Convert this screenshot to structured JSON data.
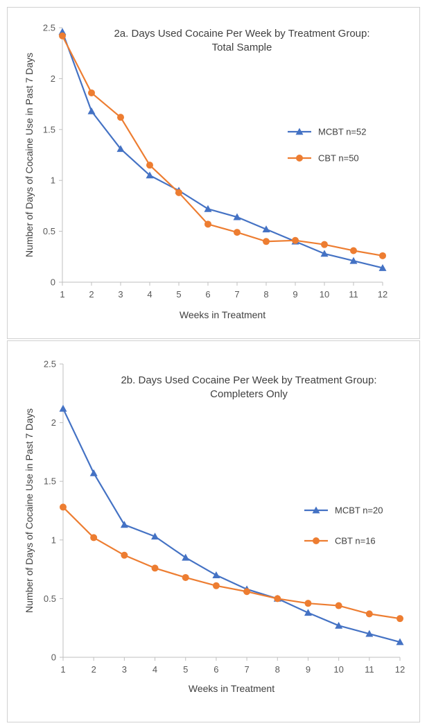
{
  "colors": {
    "mcbt": "#4472C4",
    "cbt": "#ED7D31",
    "axis": "#BFBFBF",
    "text": "#404040"
  },
  "chart_data": [
    {
      "type": "line",
      "title_line1": "2a. Days Used Cocaine Per Week by Treatment Group:",
      "title_line2": "Total Sample",
      "xlabel": "Weeks in Treatment",
      "ylabel": "Number of Days of Cocaine Use in Past 7 Days",
      "x": [
        1,
        2,
        3,
        4,
        5,
        6,
        7,
        8,
        9,
        10,
        11,
        12
      ],
      "x_tick_labels": [
        "1",
        "2",
        "3",
        "4",
        "5",
        "6",
        "7",
        "8",
        "9",
        "10",
        "11",
        "12"
      ],
      "ylim": [
        0,
        2.5
      ],
      "y_ticks": [
        0,
        0.5,
        1,
        1.5,
        2,
        2.5
      ],
      "y_tick_labels": [
        "0",
        "0.5",
        "1",
        "1.5",
        "2",
        "2.5"
      ],
      "grid": false,
      "legend_position": "right",
      "series": [
        {
          "name": "MCBT n=52",
          "marker": "triangle",
          "color": "#4472C4",
          "values": [
            2.46,
            1.68,
            1.31,
            1.05,
            0.9,
            0.72,
            0.64,
            0.52,
            0.4,
            0.28,
            0.21,
            0.14
          ]
        },
        {
          "name": "CBT n=50",
          "marker": "circle",
          "color": "#ED7D31",
          "values": [
            2.42,
            1.86,
            1.62,
            1.15,
            0.88,
            0.57,
            0.49,
            0.4,
            0.41,
            0.37,
            0.31,
            0.26
          ]
        }
      ]
    },
    {
      "type": "line",
      "title_line1": "2b. Days Used Cocaine Per Week by Treatment Group:",
      "title_line2": "Completers Only",
      "xlabel": "Weeks in Treatment",
      "ylabel": "Number of Days of Cocaine Use in Past 7 Days",
      "x": [
        1,
        2,
        3,
        4,
        5,
        6,
        7,
        8,
        9,
        10,
        11,
        12
      ],
      "x_tick_labels": [
        "1",
        "2",
        "3",
        "4",
        "5",
        "6",
        "7",
        "8",
        "9",
        "10",
        "11",
        "12"
      ],
      "ylim": [
        0,
        2.5
      ],
      "y_ticks": [
        0,
        0.5,
        1,
        1.5,
        2,
        2.5
      ],
      "y_tick_labels": [
        "0",
        "0.5",
        "1",
        "1.5",
        "2",
        "2.5"
      ],
      "grid": false,
      "legend_position": "right",
      "series": [
        {
          "name": "MCBT n=20",
          "marker": "triangle",
          "color": "#4472C4",
          "values": [
            2.12,
            1.57,
            1.13,
            1.03,
            0.85,
            0.7,
            0.58,
            0.5,
            0.38,
            0.27,
            0.2,
            0.13
          ]
        },
        {
          "name": "CBT n=16",
          "marker": "circle",
          "color": "#ED7D31",
          "values": [
            1.28,
            1.02,
            0.87,
            0.76,
            0.68,
            0.61,
            0.56,
            0.5,
            0.46,
            0.44,
            0.37,
            0.33
          ]
        }
      ]
    }
  ]
}
